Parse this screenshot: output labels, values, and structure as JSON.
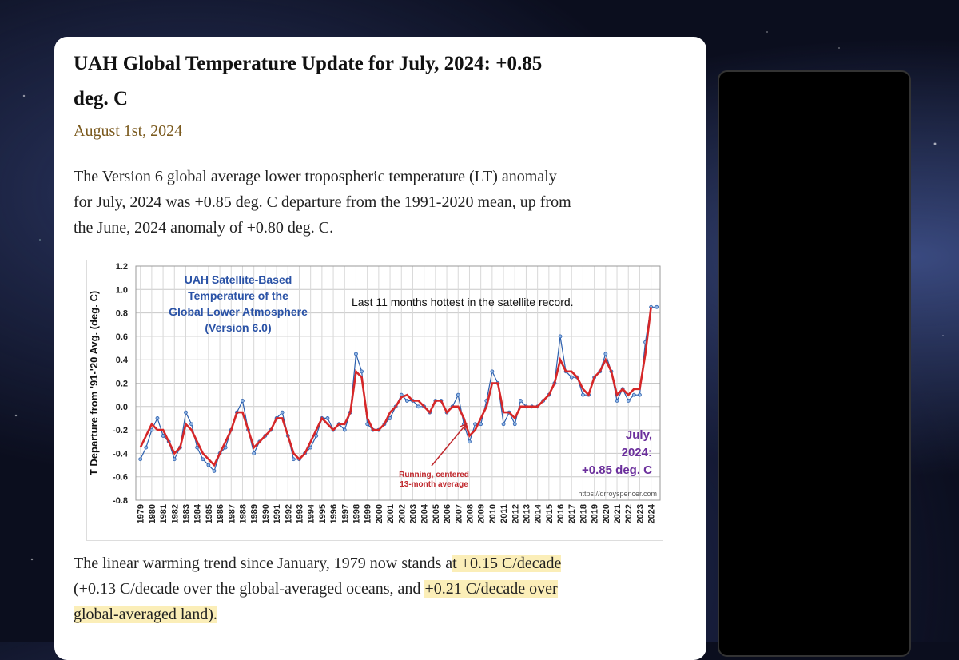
{
  "article": {
    "title_lines": [
      "UAH Global Temperature Update for July, 2024: +0.85",
      "deg. C"
    ],
    "date": "August 1st, 2024",
    "intro_lines": [
      "The Version 6 global average lower tropospheric temperature (LT) anomaly",
      "for July, 2024 was +0.85 deg. C departure from the 1991-2020 mean, up from",
      "the June, 2024 anomaly of +0.80 deg. C."
    ],
    "closing_lines": [
      [
        {
          "text": "The linear warming trend since January, 1979 now stands a",
          "highlight": false
        },
        {
          "text": "t +0.15 C/decade",
          "highlight": true
        }
      ],
      [
        {
          "text": "(+0.13 C/decade over the global-averaged oceans, and ",
          "highlight": false
        },
        {
          "text": "+0.21 C/decade over",
          "highlight": true
        }
      ],
      [
        {
          "text": "global-averaged land).",
          "highlight": true
        }
      ]
    ]
  },
  "chart_data": {
    "type": "line",
    "title_lines": [
      "UAH Satellite-Based",
      "Temperature of the",
      "Global Lower Atmosphere",
      "(Version 6.0)"
    ],
    "y_label": "T Departure from '91-'20 Avg. (deg. C)",
    "annotation": "Last 11 months hottest in the satellite record.",
    "running_note_lines": [
      "Running, centered",
      "13-month average"
    ],
    "latest_note_lines": [
      "July,",
      "2024:",
      "+0.85 deg. C"
    ],
    "source": "https://drroyspencer.com",
    "grid": true,
    "xlim": [
      1978.6,
      2024.8
    ],
    "ylim": [
      -0.8,
      1.2
    ],
    "yticks": [
      {
        "value": -0.8,
        "label": "-0.8"
      },
      -0.6,
      -0.4,
      -0.2,
      {
        "value": 0,
        "label": "0.0"
      },
      0.2,
      0.4,
      0.6,
      0.8,
      {
        "value": 1,
        "label": "1.0"
      },
      1.2
    ],
    "xticks": [
      1979,
      1980,
      1981,
      1982,
      1983,
      1984,
      1985,
      1986,
      1987,
      1988,
      1989,
      1990,
      1991,
      1992,
      1993,
      1994,
      1995,
      1996,
      1997,
      1998,
      1999,
      2000,
      2001,
      2002,
      2003,
      2004,
      2005,
      2006,
      2007,
      2008,
      2009,
      2010,
      2011,
      2012,
      2013,
      2014,
      2015,
      2016,
      2017,
      2018,
      2019,
      2020,
      2021,
      2022,
      2023,
      2024
    ],
    "x": [
      1979,
      1979.5,
      1980,
      1980.5,
      1981,
      1981.5,
      1982,
      1982.5,
      1983,
      1983.5,
      1984,
      1984.5,
      1985,
      1985.5,
      1986,
      1986.5,
      1987,
      1987.5,
      1988,
      1988.5,
      1989,
      1989.5,
      1990,
      1990.5,
      1991,
      1991.5,
      1992,
      1992.5,
      1993,
      1993.5,
      1994,
      1994.5,
      1995,
      1995.5,
      1996,
      1996.5,
      1997,
      1997.5,
      1998,
      1998.5,
      1999,
      1999.5,
      2000,
      2000.5,
      2001,
      2001.5,
      2002,
      2002.5,
      2003,
      2003.5,
      2004,
      2004.5,
      2005,
      2005.5,
      2006,
      2006.5,
      2007,
      2007.5,
      2008,
      2008.5,
      2009,
      2009.5,
      2010,
      2010.5,
      2011,
      2011.5,
      2012,
      2012.5,
      2013,
      2013.5,
      2014,
      2014.5,
      2015,
      2015.5,
      2016,
      2016.5,
      2017,
      2017.5,
      2018,
      2018.5,
      2019,
      2019.5,
      2020,
      2020.5,
      2021,
      2021.5,
      2022,
      2022.5,
      2023,
      2023.5,
      2024,
      2024.5
    ],
    "series": [
      {
        "color": "#2b5fae",
        "markers": true,
        "values": [
          -0.45,
          -0.35,
          -0.2,
          -0.1,
          -0.25,
          -0.3,
          -0.45,
          -0.35,
          -0.05,
          -0.15,
          -0.35,
          -0.45,
          -0.5,
          -0.55,
          -0.4,
          -0.35,
          -0.2,
          -0.05,
          0.05,
          -0.2,
          -0.4,
          -0.3,
          -0.25,
          -0.2,
          -0.1,
          -0.05,
          -0.25,
          -0.45,
          -0.45,
          -0.4,
          -0.35,
          -0.25,
          -0.1,
          -0.1,
          -0.2,
          -0.15,
          -0.2,
          -0.05,
          0.45,
          0.3,
          -0.15,
          -0.2,
          -0.2,
          -0.15,
          -0.1,
          0,
          0.1,
          0.05,
          0.05,
          0,
          0,
          -0.05,
          0.05,
          0.05,
          -0.05,
          0,
          0.1,
          -0.15,
          -0.3,
          -0.15,
          -0.15,
          0.05,
          0.3,
          0.2,
          -0.15,
          -0.05,
          -0.15,
          0.05,
          0,
          0,
          0,
          0.05,
          0.1,
          0.2,
          0.6,
          0.3,
          0.25,
          0.25,
          0.1,
          0.1,
          0.25,
          0.3,
          0.45,
          0.3,
          0.05,
          0.15,
          0.05,
          0.1,
          0.1,
          0.55,
          0.85,
          0.85
        ]
      },
      {
        "color": "#d62728",
        "markers": false,
        "values": [
          -0.35,
          -0.25,
          -0.15,
          -0.2,
          -0.2,
          -0.3,
          -0.4,
          -0.35,
          -0.15,
          -0.2,
          -0.3,
          -0.4,
          -0.45,
          -0.5,
          -0.4,
          -0.3,
          -0.2,
          -0.05,
          -0.05,
          -0.2,
          -0.35,
          -0.3,
          -0.25,
          -0.2,
          -0.1,
          -0.1,
          -0.25,
          -0.4,
          -0.45,
          -0.4,
          -0.3,
          -0.2,
          -0.1,
          -0.15,
          -0.2,
          -0.15,
          -0.15,
          -0.05,
          0.3,
          0.25,
          -0.1,
          -0.2,
          -0.2,
          -0.15,
          -0.05,
          0,
          0.08,
          0.1,
          0.05,
          0.05,
          0,
          -0.05,
          0.05,
          0.05,
          -0.05,
          0,
          0,
          -0.1,
          -0.25,
          -0.2,
          -0.1,
          0,
          0.2,
          0.2,
          -0.05,
          -0.05,
          -0.1,
          0,
          0,
          0,
          0,
          0.05,
          0.1,
          0.2,
          0.4,
          0.3,
          0.3,
          0.25,
          0.15,
          0.1,
          0.25,
          0.3,
          0.4,
          0.3,
          0.1,
          0.15,
          0.1,
          0.15,
          0.15,
          0.45,
          0.85,
          null
        ]
      }
    ]
  }
}
